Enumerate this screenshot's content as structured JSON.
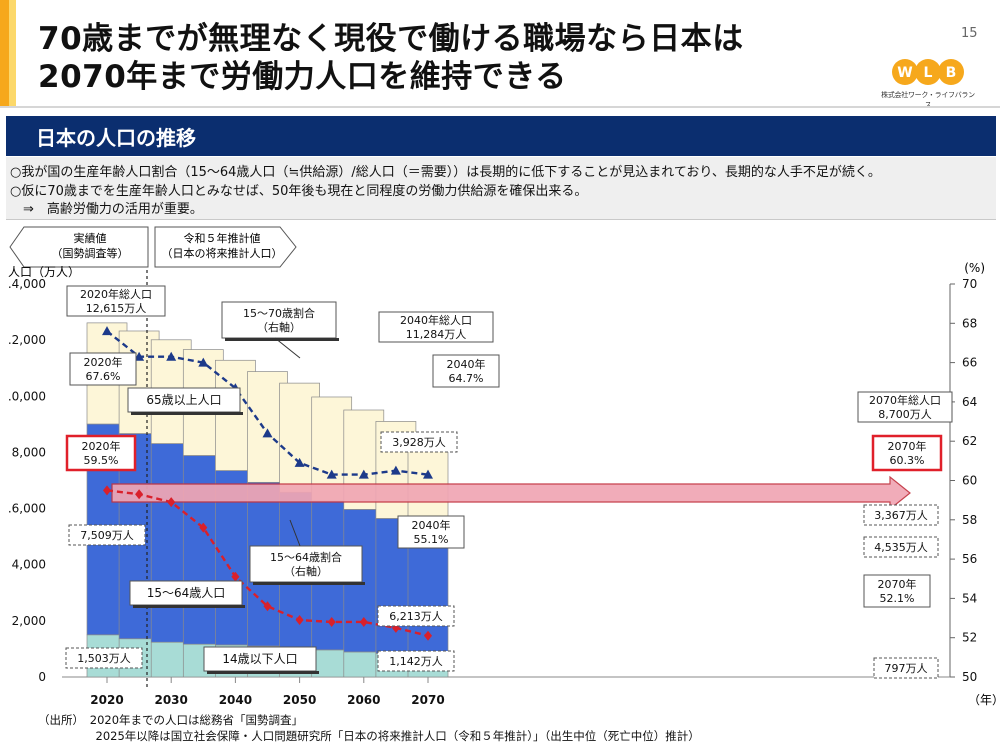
{
  "slide": {
    "title_line1": "70歳までが無理なく現役で働ける職場なら日本は",
    "title_line2": "2070年まで労働力人口を維持できる",
    "page_number": "15",
    "logo_letters": [
      "W",
      "L",
      "B"
    ],
    "company_name": "株式会社ワーク・ライフバランス",
    "banner_title": "日本の人口の推移",
    "notes": [
      "○我が国の生産年齢人口割合（15～64歳人口（≒供給源）/総人口（＝需要））は長期的に低下することが見込まれており、長期的な人手不足が続く。",
      "○仮に70歳までを生産年齢人口とみなせば、50年後も現在と同程度の労働力供給源を確保出来る。",
      "　⇒　高齢労働力の活用が重要。"
    ],
    "source_lines": [
      "（出所）　2020年までの人口は総務省「国勢調査」",
      "　　　　　2025年以降は国立社会保障・人口問題研究所「日本の将来推計人口（令和５年推計）」（出生中位（死亡中位）推計）"
    ],
    "colors": {
      "accent_orange": "#f6a81c",
      "banner_navy": "#0b2e6f",
      "bar_65_plus": "#fdf6d8",
      "bar_15_64": "#3e6ad8",
      "bar_under_14": "#a8dcd6",
      "line_15_70": "#1d3a8a",
      "line_15_64": "#d9202b",
      "arrow_fill": "#f0a6b4",
      "highlight_red": "#e0202a"
    }
  },
  "chart_data": {
    "type": "bar",
    "stacked": true,
    "x": [
      2020,
      2025,
      2030,
      2035,
      2040,
      2045,
      2050,
      2055,
      2060,
      2065,
      2070
    ],
    "x_tick_labels": [
      "2020",
      "2030",
      "2040",
      "2050",
      "2060",
      "2070"
    ],
    "x_unit": "（年）",
    "y_left_label": "人口（万人）",
    "y_left_ticks": [
      ".4,000",
      ".2,000",
      ".0,000",
      "8,000",
      ".6,000",
      "4,000",
      "2,000",
      "0"
    ],
    "ylim_left": [
      0,
      14000
    ],
    "y_right_label": "(%)",
    "y_right_ticks": [
      "70",
      "68",
      "66",
      "64",
      "62",
      "60",
      "58",
      "56",
      "54",
      "52",
      "50"
    ],
    "ylim_right": [
      50,
      70
    ],
    "series": [
      {
        "name": "14歳以下人口",
        "values": [
          1503,
          1363,
          1240,
          1169,
          1142,
          1103,
          1041,
          966,
          893,
          840,
          797
        ]
      },
      {
        "name": "15～64歳人口",
        "values": [
          7509,
          7310,
          7076,
          6722,
          6213,
          5832,
          5540,
          5307,
          5078,
          4809,
          4535
        ]
      },
      {
        "name": "65歳以上人口",
        "values": [
          3603,
          3653,
          3696,
          3773,
          3928,
          3945,
          3888,
          3702,
          3540,
          3455,
          3367
        ]
      }
    ],
    "line_series": [
      {
        "name": "15～70歳割合（右軸）",
        "axis": "right",
        "values": [
          67.6,
          66.3,
          66.3,
          66.0,
          64.7,
          62.4,
          60.9,
          60.3,
          60.3,
          60.5,
          60.3
        ]
      },
      {
        "name": "15～64歳割合（右軸）",
        "axis": "right",
        "values": [
          59.5,
          59.3,
          58.9,
          57.6,
          55.1,
          53.6,
          52.9,
          52.8,
          52.8,
          52.5,
          52.1
        ]
      }
    ],
    "period_labels": [
      {
        "title": "実績値",
        "subtitle": "（国勢調査等）"
      },
      {
        "title": "令和５年推計値",
        "subtitle": "（日本の将来推計人口）"
      }
    ],
    "annotations": {
      "total_2020": [
        "2020年総人口",
        "12,615万人"
      ],
      "total_2040": [
        "2040年総人口",
        "11,284万人"
      ],
      "total_2070": [
        "2070年総人口",
        "8,700万人"
      ],
      "r70_2020": [
        "2020年",
        "67.6%"
      ],
      "r70_2040": [
        "2040年",
        "64.7%"
      ],
      "r70_2070": [
        "2070年",
        "60.3%"
      ],
      "r64_2020": [
        "2020年",
        "59.5%"
      ],
      "r64_2040": [
        "2040年",
        "55.1%"
      ],
      "r64_2070": [
        "2070年",
        "52.1%"
      ],
      "line70_label": [
        "15～70歳割合",
        "（右軸）"
      ],
      "line64_label": [
        "15～64歳割合",
        "（右軸）"
      ],
      "label_65": "65歳以上人口",
      "label_1564": "15～64歳人口",
      "label_14": "14歳以下人口",
      "v_7509": "7,509万人",
      "v_1503": "1,503万人",
      "v_3928": "3,928万人",
      "v_6213": "6,213万人",
      "v_1142": "1,142万人",
      "v_3367": "3,367万人",
      "v_4535": "4,535万人",
      "v_797": "797万人"
    },
    "grid": false,
    "legend": "none"
  }
}
